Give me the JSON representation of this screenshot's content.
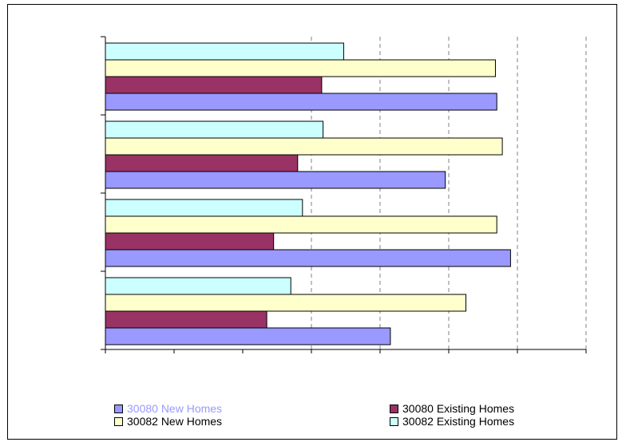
{
  "chart_data": {
    "type": "bar",
    "orientation": "horizontal",
    "categories": [
      "",
      "",
      "",
      ""
    ],
    "series": [
      {
        "name": "30080 New Homes",
        "color": "#9999ff",
        "values": [
          4.15,
          5.9,
          4.95,
          5.7
        ]
      },
      {
        "name": "30080 Existing Homes",
        "color": "#993366",
        "values": [
          2.35,
          2.45,
          2.8,
          3.15
        ]
      },
      {
        "name": "30082 New Homes",
        "color": "#ffffcc",
        "values": [
          5.25,
          5.7,
          5.78,
          5.68
        ]
      },
      {
        "name": "30082 Existing Homes",
        "color": "#ccffff",
        "values": [
          2.7,
          2.87,
          3.17,
          3.47
        ]
      }
    ],
    "xlim": [
      0,
      7
    ],
    "x_gridlines": [
      3,
      4,
      5,
      6,
      7
    ],
    "grid": "vertical dashed",
    "legend_position": "bottom",
    "title": "",
    "xlabel": "",
    "ylabel": "",
    "legend_label_color_first": "#9999ff"
  }
}
